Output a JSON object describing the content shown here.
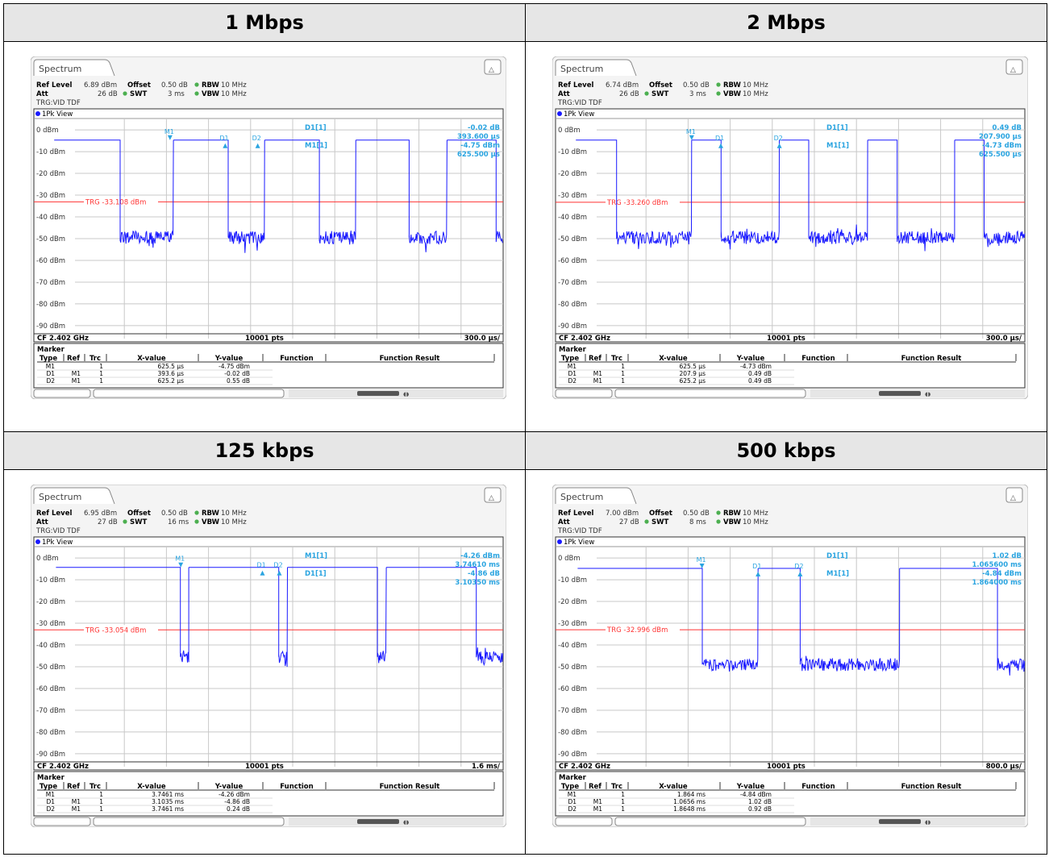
{
  "headers": [
    "1 Mbps",
    "2 Mbps",
    "125 kbps",
    "500 kbps"
  ],
  "labels": {
    "tab": "Spectrum",
    "ref_level": "Ref Level",
    "att": "Att",
    "offset": "Offset",
    "offset_val": "0.50 dB",
    "rbw": "RBW",
    "vbw": "VBW",
    "swt": "SWT",
    "bw_val": "10 MHz",
    "trg": "TRG:VID TDF",
    "view": "1Pk View",
    "cf": "CF 2.402 GHz",
    "pts": "10001 pts",
    "marker": "Marker",
    "cols": [
      "Type",
      "Ref",
      "Trc",
      "X-value",
      "Y-value",
      "Function",
      "Function Result"
    ],
    "ticks": [
      "0 dBm",
      "-10 dBm",
      "-20 dBm",
      "-30 dBm",
      "-40 dBm",
      "-50 dBm",
      "-60 dBm",
      "-70 dBm",
      "-80 dBm",
      "-90 dBm"
    ]
  },
  "colors": {
    "trace": "#1a1aff",
    "marker": "#2aa4e0",
    "trigger": "#ff3333",
    "header_bg": "#e6e6e6"
  },
  "chart_data": [
    {
      "type": "line",
      "title": "1 Mbps",
      "ref_level": "6.89 dBm",
      "att": "26 dB",
      "swt": "3 ms",
      "trg_label": "TRG -33.108 dBm",
      "trigger_level": -33.108,
      "x_label": "300.0 µs/",
      "ylim": [
        -95,
        10
      ],
      "xlim_us": [
        0,
        3000
      ],
      "pulses_us": [
        [
          -200,
          270
        ],
        [
          650,
          1040
        ],
        [
          1300,
          1690
        ],
        [
          1950,
          2330
        ],
        [
          2600,
          2950
        ]
      ],
      "high_dbm": -4.7,
      "noise_dbm": -49.5,
      "markers": [
        {
          "name": "M1",
          "x_us": 625.5
        },
        {
          "name": "D1",
          "x_us": 1019.1
        },
        {
          "name": "D2",
          "x_us": 1250.7
        }
      ],
      "info_lines": [
        [
          "D1[1]",
          "-0.02 dB",
          "393.600 µs"
        ],
        [
          "M1[1]",
          "-4.75 dBm",
          "625.500 µs"
        ]
      ],
      "table": [
        [
          "M1",
          "",
          "1",
          "625.5 µs",
          "-4.75 dBm"
        ],
        [
          "D1",
          "M1",
          "1",
          "393.6 µs",
          "-0.02 dB"
        ],
        [
          "D2",
          "M1",
          "1",
          "625.2 µs",
          "0.55 dB"
        ]
      ]
    },
    {
      "type": "line",
      "title": "2 Mbps",
      "ref_level": "6.74 dBm",
      "att": "26 dB",
      "swt": "3 ms",
      "trg_label": "TRG -33.260 dBm",
      "trigger_level": -33.26,
      "x_label": "300.0 µs/",
      "ylim": [
        -95,
        10
      ],
      "xlim_us": [
        0,
        3000
      ],
      "pulses_us": [
        [
          -200,
          90
        ],
        [
          625,
          835
        ],
        [
          1250,
          1460
        ],
        [
          1880,
          2090
        ],
        [
          2500,
          2710
        ]
      ],
      "high_dbm": -4.7,
      "noise_dbm": -49.5,
      "markers": [
        {
          "name": "M1",
          "x_us": 625.5
        },
        {
          "name": "D1",
          "x_us": 833.4
        },
        {
          "name": "D2",
          "x_us": 1250.7
        }
      ],
      "info_lines": [
        [
          "D1[1]",
          "0.49 dB",
          "207.900 µs"
        ],
        [
          "M1[1]",
          "-4.73 dBm",
          "625.500 µs"
        ]
      ],
      "table": [
        [
          "M1",
          "",
          "1",
          "625.5 µs",
          "-4.73 dBm"
        ],
        [
          "D1",
          "M1",
          "1",
          "207.9 µs",
          "0.49 dB"
        ],
        [
          "D2",
          "M1",
          "1",
          "625.2 µs",
          "0.49 dB"
        ]
      ]
    },
    {
      "type": "line",
      "title": "125 kbps",
      "ref_level": "6.95 dBm",
      "att": "27 dB",
      "swt": "16 ms",
      "trg_label": "TRG -33.054 dBm",
      "trigger_level": -33.054,
      "x_label": "1.6 ms/",
      "ylim": [
        -95,
        10
      ],
      "xlim_us": [
        0,
        16000
      ],
      "pulses_us": [
        [
          -1000,
          3730
        ],
        [
          4050,
          7470
        ],
        [
          7800,
          11220
        ],
        [
          11560,
          14980
        ]
      ],
      "high_dbm": -4.3,
      "noise_dbm": -45.5,
      "markers": [
        {
          "name": "M1",
          "x_us": 3746.1
        },
        {
          "name": "D1",
          "x_us": 6849.6
        },
        {
          "name": "D2",
          "x_us": 7492.2
        }
      ],
      "info_lines": [
        [
          "M1[1]",
          "-4.26 dBm",
          "3.74610 ms"
        ],
        [
          "D1[1]",
          "-4.86 dB",
          "3.10350 ms"
        ]
      ],
      "table": [
        [
          "M1",
          "",
          "1",
          "3.7461 ms",
          "-4.26 dBm"
        ],
        [
          "D1",
          "M1",
          "1",
          "3.1035 ms",
          "-4.86 dB"
        ],
        [
          "D2",
          "M1",
          "1",
          "3.7461 ms",
          "0.24 dB"
        ]
      ]
    },
    {
      "type": "line",
      "title": "500 kbps",
      "ref_level": "7.00 dBm",
      "att": "27 dB",
      "swt": "8 ms",
      "trg_label": "TRG -32.996 dBm",
      "trigger_level": -32.996,
      "x_label": "800.0 µs/",
      "ylim": [
        -95,
        10
      ],
      "xlim_us": [
        0,
        8000
      ],
      "pulses_us": [
        [
          -500,
          1870
        ],
        [
          2930,
          3730
        ],
        [
          5620,
          7480
        ]
      ],
      "high_dbm": -4.8,
      "noise_dbm": -49.0,
      "markers": [
        {
          "name": "M1",
          "x_us": 1864
        },
        {
          "name": "D1",
          "x_us": 2929.6
        },
        {
          "name": "D2",
          "x_us": 3728.8
        }
      ],
      "info_lines": [
        [
          "D1[1]",
          "1.02 dB",
          "1.065600 ms"
        ],
        [
          "M1[1]",
          "-4.84 dBm",
          "1.864000 ms"
        ]
      ],
      "table": [
        [
          "M1",
          "",
          "1",
          "1.864 ms",
          "-4.84 dBm"
        ],
        [
          "D1",
          "M1",
          "1",
          "1.0656 ms",
          "1.02 dB"
        ],
        [
          "D2",
          "M1",
          "1",
          "1.8648 ms",
          "0.92 dB"
        ]
      ]
    }
  ]
}
